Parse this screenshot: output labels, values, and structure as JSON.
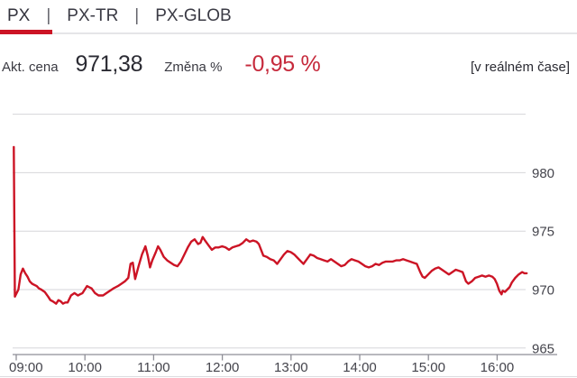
{
  "tabs": {
    "separator": "|",
    "items": [
      {
        "label": "PX",
        "active": true
      },
      {
        "label": "PX-TR",
        "active": false
      },
      {
        "label": "PX-GLOB",
        "active": false
      }
    ]
  },
  "quote": {
    "price_label": "Akt. cena",
    "price": "971,38",
    "change_label": "Změna %",
    "change": "-0,95 %",
    "realtime_note": "[v reálném čase]"
  },
  "colors": {
    "accent_red": "#cc1425",
    "line_red": "#cc1425",
    "change_negative_red": "#c62a3c",
    "text_primary": "#2b2b33",
    "text_label": "#3a3a42",
    "tick_text": "#44444c",
    "gridline": "#d6d6da",
    "axis": "#8e8e96",
    "tab_border": "#e5e5e8",
    "bottom_border": "#dcdce0"
  },
  "chart_data": {
    "type": "line",
    "series_name": "PX",
    "title": "",
    "grid": true,
    "legend": "none",
    "x_axis": {
      "unit": "time",
      "tick_labels": [
        "09:00",
        "10:00",
        "11:00",
        "12:00",
        "13:00",
        "14:00",
        "15:00",
        "16:00"
      ],
      "tick_minutes": [
        0,
        60,
        120,
        180,
        240,
        300,
        360,
        420
      ],
      "minutes_range": [
        0,
        449
      ]
    },
    "y_axis": {
      "tick_labels": [
        "980",
        "975",
        "970",
        "965"
      ],
      "tick_values": [
        980,
        975,
        970,
        965
      ],
      "gridline_values": [
        985,
        980,
        975,
        970,
        965
      ],
      "range": [
        964,
        985.6
      ],
      "side": "right"
    },
    "points": [
      [
        1,
        982.2
      ],
      [
        2,
        969.4
      ],
      [
        5,
        970.0
      ],
      [
        7,
        971.3
      ],
      [
        9,
        971.8
      ],
      [
        11,
        971.4
      ],
      [
        13,
        971.1
      ],
      [
        15,
        970.7
      ],
      [
        17,
        970.5
      ],
      [
        19,
        970.4
      ],
      [
        21,
        970.3
      ],
      [
        23,
        970.1
      ],
      [
        25,
        970.0
      ],
      [
        28,
        969.8
      ],
      [
        31,
        969.4
      ],
      [
        33,
        969.1
      ],
      [
        35,
        969.0
      ],
      [
        38,
        968.8
      ],
      [
        40,
        969.1
      ],
      [
        42,
        969.0
      ],
      [
        44,
        968.8
      ],
      [
        46,
        968.9
      ],
      [
        48,
        968.9
      ],
      [
        51,
        969.5
      ],
      [
        54,
        969.7
      ],
      [
        57,
        969.5
      ],
      [
        59,
        969.6
      ],
      [
        61,
        969.7
      ],
      [
        63,
        970.0
      ],
      [
        65,
        970.3
      ],
      [
        67,
        970.2
      ],
      [
        69,
        970.1
      ],
      [
        72,
        969.7
      ],
      [
        75,
        969.5
      ],
      [
        79,
        969.5
      ],
      [
        82,
        969.7
      ],
      [
        85,
        969.9
      ],
      [
        88,
        970.1
      ],
      [
        92,
        970.3
      ],
      [
        95,
        970.5
      ],
      [
        98,
        970.7
      ],
      [
        101,
        971.0
      ],
      [
        103,
        972.2
      ],
      [
        105,
        972.3
      ],
      [
        107,
        970.9
      ],
      [
        110,
        972.0
      ],
      [
        113,
        973.0
      ],
      [
        116,
        973.7
      ],
      [
        118,
        972.9
      ],
      [
        120,
        971.9
      ],
      [
        122,
        972.5
      ],
      [
        125,
        973.2
      ],
      [
        127,
        973.7
      ],
      [
        129,
        973.4
      ],
      [
        132,
        972.8
      ],
      [
        135,
        972.5
      ],
      [
        138,
        972.3
      ],
      [
        141,
        972.1
      ],
      [
        144,
        972.0
      ],
      [
        147,
        972.4
      ],
      [
        150,
        973.0
      ],
      [
        153,
        973.6
      ],
      [
        156,
        974.1
      ],
      [
        159,
        974.3
      ],
      [
        162,
        973.9
      ],
      [
        164,
        974.0
      ],
      [
        166,
        974.5
      ],
      [
        168,
        974.2
      ],
      [
        171,
        973.8
      ],
      [
        174,
        973.4
      ],
      [
        177,
        973.6
      ],
      [
        180,
        973.6
      ],
      [
        183,
        973.7
      ],
      [
        186,
        973.6
      ],
      [
        189,
        973.4
      ],
      [
        192,
        973.6
      ],
      [
        195,
        973.7
      ],
      [
        198,
        973.8
      ],
      [
        201,
        974.0
      ],
      [
        204,
        974.3
      ],
      [
        207,
        974.1
      ],
      [
        210,
        974.2
      ],
      [
        213,
        974.1
      ],
      [
        215,
        973.9
      ],
      [
        217,
        973.4
      ],
      [
        219,
        972.9
      ],
      [
        222,
        972.8
      ],
      [
        225,
        972.6
      ],
      [
        228,
        972.5
      ],
      [
        231,
        972.2
      ],
      [
        234,
        972.6
      ],
      [
        237,
        973.0
      ],
      [
        240,
        973.3
      ],
      [
        243,
        973.2
      ],
      [
        246,
        973.0
      ],
      [
        249,
        972.7
      ],
      [
        252,
        972.4
      ],
      [
        254,
        972.2
      ],
      [
        257,
        972.6
      ],
      [
        260,
        973.0
      ],
      [
        263,
        972.9
      ],
      [
        266,
        972.7
      ],
      [
        269,
        972.6
      ],
      [
        272,
        972.5
      ],
      [
        275,
        972.4
      ],
      [
        278,
        972.6
      ],
      [
        281,
        972.4
      ],
      [
        284,
        972.2
      ],
      [
        287,
        972.0
      ],
      [
        290,
        972.1
      ],
      [
        293,
        972.4
      ],
      [
        296,
        972.6
      ],
      [
        299,
        972.5
      ],
      [
        302,
        972.4
      ],
      [
        305,
        972.2
      ],
      [
        308,
        972.0
      ],
      [
        311,
        971.9
      ],
      [
        314,
        972.0
      ],
      [
        317,
        972.2
      ],
      [
        320,
        972.1
      ],
      [
        323,
        972.3
      ],
      [
        326,
        972.4
      ],
      [
        329,
        972.4
      ],
      [
        332,
        972.4
      ],
      [
        335,
        972.5
      ],
      [
        338,
        972.5
      ],
      [
        341,
        972.6
      ],
      [
        344,
        972.5
      ],
      [
        347,
        972.4
      ],
      [
        350,
        972.3
      ],
      [
        353,
        972.2
      ],
      [
        356,
        971.5
      ],
      [
        358,
        971.1
      ],
      [
        360,
        971.0
      ],
      [
        363,
        971.3
      ],
      [
        366,
        971.6
      ],
      [
        369,
        971.8
      ],
      [
        372,
        971.9
      ],
      [
        375,
        971.7
      ],
      [
        378,
        971.5
      ],
      [
        381,
        971.3
      ],
      [
        384,
        971.5
      ],
      [
        387,
        971.7
      ],
      [
        390,
        971.6
      ],
      [
        393,
        971.5
      ],
      [
        396,
        970.7
      ],
      [
        398,
        970.5
      ],
      [
        401,
        970.7
      ],
      [
        404,
        971.0
      ],
      [
        407,
        971.1
      ],
      [
        410,
        971.2
      ],
      [
        413,
        971.1
      ],
      [
        416,
        971.2
      ],
      [
        419,
        971.1
      ],
      [
        421,
        970.9
      ],
      [
        423,
        970.5
      ],
      [
        425,
        969.9
      ],
      [
        427,
        969.6
      ],
      [
        428,
        969.9
      ],
      [
        430,
        969.8
      ],
      [
        432,
        970.0
      ],
      [
        434,
        970.2
      ],
      [
        436,
        970.6
      ],
      [
        439,
        971.0
      ],
      [
        442,
        971.3
      ],
      [
        445,
        971.5
      ],
      [
        447,
        971.4
      ],
      [
        449,
        971.4
      ]
    ]
  }
}
